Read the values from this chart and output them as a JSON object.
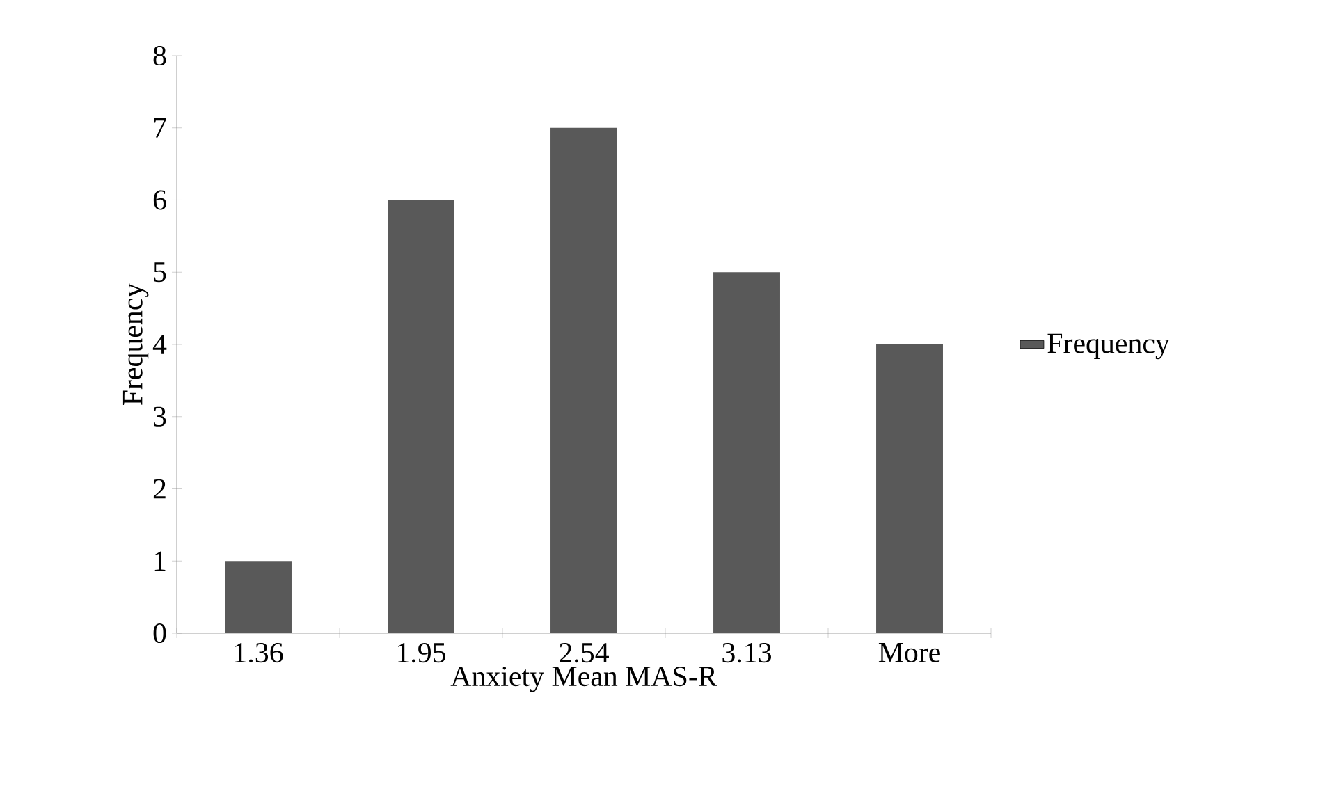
{
  "chart_data": {
    "type": "bar",
    "xlabel": "Anxiety  Mean MAS-R",
    "ylabel": "Frequency",
    "categories": [
      "1.36",
      "1.95",
      "2.54",
      "3.13",
      "More"
    ],
    "series": [
      {
        "name": "Frequency",
        "color": "#595959",
        "values": [
          1,
          6,
          7,
          5,
          4
        ]
      }
    ],
    "ylim": [
      0,
      8
    ],
    "yticks": [
      0,
      1,
      2,
      3,
      4,
      5,
      6,
      7,
      8
    ],
    "grid": false,
    "legend": "right"
  }
}
